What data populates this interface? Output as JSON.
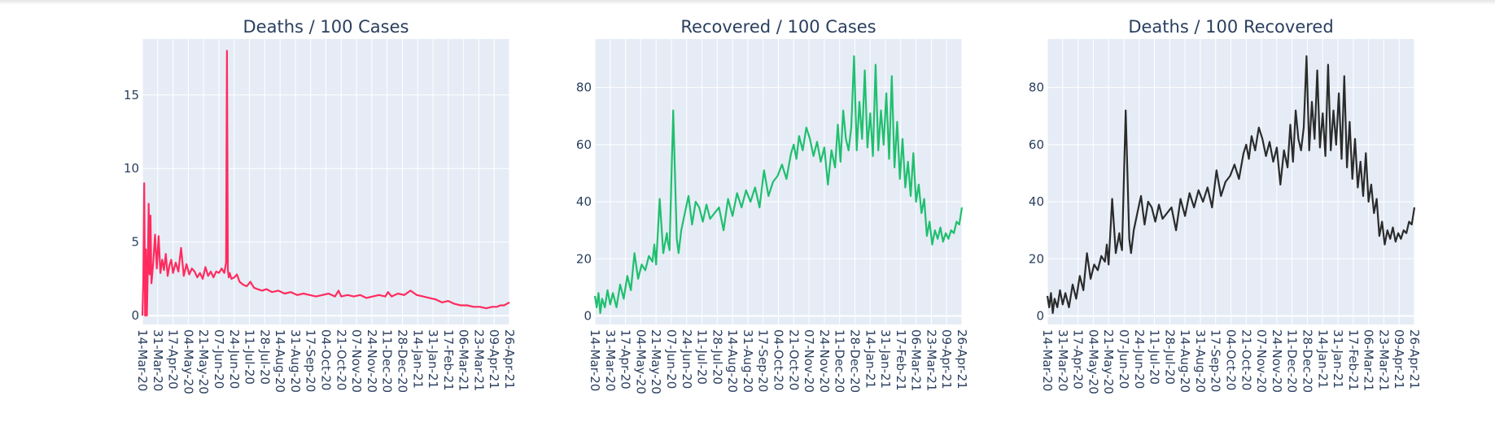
{
  "colors": {
    "plot_background": "#e5ecf6",
    "grid": "#ffffff",
    "text": "#2a3f5f",
    "deaths_line": "#ff2b5e",
    "recovered_line": "#1fbf6e",
    "deaths_per_recovered_line": "#2b2b2b"
  },
  "chart_data": [
    {
      "type": "line",
      "title": "Deaths / 100 Cases",
      "xlabel": "",
      "ylabel": "",
      "x_range": [
        "2020-03-14",
        "2021-04-26"
      ],
      "ylim": [
        -0.6,
        18.8
      ],
      "yticks": [
        0,
        5,
        10,
        15
      ],
      "xtick_labels": [
        "14-Mar-20",
        "31-Mar-20",
        "17-Apr-20",
        "04-May-20",
        "21-May-20",
        "07-Jun-20",
        "24-Jun-20",
        "11-Jul-20",
        "28-Jul-20",
        "14-Aug-20",
        "31-Aug-20",
        "17-Sep-20",
        "04-Oct-20",
        "21-Oct-20",
        "07-Nov-20",
        "24-Nov-20",
        "11-Dec-20",
        "28-Dec-20",
        "14-Jan-21",
        "31-Jan-21",
        "17-Feb-21",
        "06-Mar-21",
        "23-Mar-21",
        "09-Apr-21",
        "26-Apr-21"
      ],
      "grid": true,
      "legend": "none",
      "series": [
        {
          "color": "#ff2b5e",
          "x": [
            "2020-03-14",
            "2020-03-15",
            "2020-03-16",
            "2020-03-17",
            "2020-03-18",
            "2020-03-19",
            "2020-03-20",
            "2020-03-21",
            "2020-03-22",
            "2020-03-23",
            "2020-03-24",
            "2020-03-26",
            "2020-03-28",
            "2020-03-30",
            "2020-04-01",
            "2020-04-03",
            "2020-04-05",
            "2020-04-07",
            "2020-04-09",
            "2020-04-11",
            "2020-04-13",
            "2020-04-15",
            "2020-04-17",
            "2020-04-20",
            "2020-04-23",
            "2020-04-26",
            "2020-04-29",
            "2020-05-02",
            "2020-05-05",
            "2020-05-08",
            "2020-05-11",
            "2020-05-14",
            "2020-05-17",
            "2020-05-20",
            "2020-05-23",
            "2020-05-26",
            "2020-05-29",
            "2020-06-01",
            "2020-06-04",
            "2020-06-07",
            "2020-06-10",
            "2020-06-13",
            "2020-06-15",
            "2020-06-16",
            "2020-06-17",
            "2020-06-18",
            "2020-06-19",
            "2020-06-21",
            "2020-06-24",
            "2020-06-27",
            "2020-06-30",
            "2020-07-04",
            "2020-07-08",
            "2020-07-12",
            "2020-07-16",
            "2020-07-20",
            "2020-07-25",
            "2020-07-30",
            "2020-08-05",
            "2020-08-12",
            "2020-08-19",
            "2020-08-26",
            "2020-09-02",
            "2020-09-09",
            "2020-09-16",
            "2020-09-23",
            "2020-09-30",
            "2020-10-07",
            "2020-10-14",
            "2020-10-18",
            "2020-10-21",
            "2020-10-28",
            "2020-11-04",
            "2020-11-11",
            "2020-11-18",
            "2020-11-25",
            "2020-12-02",
            "2020-12-09",
            "2020-12-12",
            "2020-12-16",
            "2020-12-23",
            "2020-12-30",
            "2021-01-06",
            "2021-01-13",
            "2021-01-20",
            "2021-01-27",
            "2021-02-03",
            "2021-02-10",
            "2021-02-17",
            "2021-02-24",
            "2021-03-03",
            "2021-03-10",
            "2021-03-17",
            "2021-03-24",
            "2021-03-31",
            "2021-04-07",
            "2021-04-12",
            "2021-04-16",
            "2021-04-20",
            "2021-04-23",
            "2021-04-26"
          ],
          "y": [
            0,
            2.4,
            9.0,
            0,
            4.5,
            0,
            3.2,
            7.6,
            2.8,
            6.8,
            2.2,
            3.6,
            5.5,
            3.2,
            5.4,
            2.9,
            3.8,
            3.1,
            4.2,
            2.7,
            3.4,
            3.8,
            2.9,
            3.6,
            3.0,
            4.6,
            2.7,
            3.5,
            2.8,
            3.2,
            3.0,
            2.6,
            2.9,
            2.5,
            3.3,
            2.7,
            3.0,
            2.6,
            3.0,
            2.9,
            3.2,
            2.9,
            3.6,
            18.0,
            3.1,
            2.6,
            2.9,
            2.5,
            2.6,
            2.8,
            2.3,
            2.1,
            2.0,
            2.3,
            1.9,
            1.8,
            1.7,
            1.8,
            1.6,
            1.7,
            1.5,
            1.6,
            1.4,
            1.5,
            1.4,
            1.3,
            1.4,
            1.5,
            1.3,
            1.7,
            1.3,
            1.4,
            1.3,
            1.4,
            1.2,
            1.3,
            1.4,
            1.3,
            1.6,
            1.3,
            1.5,
            1.4,
            1.7,
            1.4,
            1.3,
            1.2,
            1.1,
            0.9,
            1.0,
            0.8,
            0.7,
            0.7,
            0.6,
            0.6,
            0.5,
            0.6,
            0.6,
            0.7,
            0.7,
            0.8,
            0.9
          ]
        }
      ]
    },
    {
      "type": "line",
      "title": "Recovered / 100 Cases",
      "xlabel": "",
      "ylabel": "",
      "x_range": [
        "2020-03-14",
        "2021-04-26"
      ],
      "ylim": [
        -3,
        97
      ],
      "yticks": [
        0,
        20,
        40,
        60,
        80
      ],
      "xtick_labels": [
        "14-Mar-20",
        "31-Mar-20",
        "17-Apr-20",
        "04-May-20",
        "21-May-20",
        "07-Jun-20",
        "24-Jun-20",
        "11-Jul-20",
        "28-Jul-20",
        "14-Aug-20",
        "31-Aug-20",
        "17-Sep-20",
        "04-Oct-20",
        "21-Oct-20",
        "07-Nov-20",
        "24-Nov-20",
        "11-Dec-20",
        "28-Dec-20",
        "14-Jan-21",
        "31-Jan-21",
        "17-Feb-21",
        "06-Mar-21",
        "23-Mar-21",
        "09-Apr-21",
        "26-Apr-21"
      ],
      "grid": true,
      "legend": "none",
      "series": [
        {
          "color": "#1fbf6e",
          "x": [
            "2020-03-14",
            "2020-03-16",
            "2020-03-18",
            "2020-03-20",
            "2020-03-22",
            "2020-03-25",
            "2020-03-28",
            "2020-03-31",
            "2020-04-03",
            "2020-04-07",
            "2020-04-11",
            "2020-04-15",
            "2020-04-19",
            "2020-04-23",
            "2020-04-27",
            "2020-05-01",
            "2020-05-05",
            "2020-05-09",
            "2020-05-13",
            "2020-05-17",
            "2020-05-19",
            "2020-05-21",
            "2020-05-25",
            "2020-05-29",
            "2020-06-02",
            "2020-06-03",
            "2020-06-05",
            "2020-06-09",
            "2020-06-13",
            "2020-06-15",
            "2020-06-18",
            "2020-06-22",
            "2020-06-26",
            "2020-06-30",
            "2020-07-04",
            "2020-07-08",
            "2020-07-12",
            "2020-07-16",
            "2020-07-20",
            "2020-07-25",
            "2020-07-30",
            "2020-08-04",
            "2020-08-09",
            "2020-08-14",
            "2020-08-19",
            "2020-08-24",
            "2020-08-29",
            "2020-09-03",
            "2020-09-08",
            "2020-09-13",
            "2020-09-18",
            "2020-09-23",
            "2020-09-28",
            "2020-10-03",
            "2020-10-08",
            "2020-10-13",
            "2020-10-18",
            "2020-10-21",
            "2020-10-24",
            "2020-10-27",
            "2020-10-31",
            "2020-11-04",
            "2020-11-08",
            "2020-11-12",
            "2020-11-16",
            "2020-11-20",
            "2020-11-24",
            "2020-11-28",
            "2020-12-02",
            "2020-12-06",
            "2020-12-09",
            "2020-12-12",
            "2020-12-15",
            "2020-12-18",
            "2020-12-21",
            "2020-12-24",
            "2020-12-27",
            "2020-12-30",
            "2021-01-02",
            "2021-01-05",
            "2021-01-08",
            "2021-01-11",
            "2021-01-14",
            "2021-01-17",
            "2021-01-20",
            "2021-01-23",
            "2021-01-26",
            "2021-01-29",
            "2021-02-01",
            "2021-02-04",
            "2021-02-07",
            "2021-02-10",
            "2021-02-13",
            "2021-02-16",
            "2021-02-19",
            "2021-02-22",
            "2021-02-25",
            "2021-02-28",
            "2021-03-03",
            "2021-03-06",
            "2021-03-09",
            "2021-03-12",
            "2021-03-15",
            "2021-03-18",
            "2021-03-21",
            "2021-03-24",
            "2021-03-27",
            "2021-03-30",
            "2021-04-02",
            "2021-04-05",
            "2021-04-08",
            "2021-04-11",
            "2021-04-14",
            "2021-04-17",
            "2021-04-20",
            "2021-04-23",
            "2021-04-26"
          ],
          "y": [
            7,
            3,
            8,
            1,
            6,
            3,
            9,
            4,
            8,
            3,
            11,
            6,
            14,
            9,
            22,
            13,
            18,
            16,
            21,
            19,
            25,
            18,
            41,
            22,
            29,
            26,
            23,
            72,
            27,
            22,
            30,
            36,
            42,
            32,
            40,
            38,
            33,
            39,
            34,
            36,
            38,
            30,
            41,
            35,
            43,
            38,
            44,
            40,
            45,
            38,
            51,
            42,
            47,
            49,
            53,
            48,
            57,
            60,
            55,
            63,
            58,
            66,
            62,
            56,
            61,
            54,
            59,
            46,
            58,
            52,
            67,
            54,
            72,
            62,
            58,
            66,
            91,
            58,
            75,
            62,
            86,
            59,
            71,
            56,
            88,
            58,
            72,
            60,
            78,
            55,
            84,
            52,
            68,
            48,
            62,
            45,
            54,
            42,
            57,
            40,
            46,
            36,
            41,
            28,
            33,
            25,
            30,
            27,
            31,
            26,
            29,
            27,
            30,
            29,
            33,
            32,
            38
          ]
        }
      ]
    },
    {
      "type": "line",
      "title": "Deaths / 100 Recovered",
      "xlabel": "",
      "ylabel": "",
      "x_range": [
        "2020-03-14",
        "2021-04-26"
      ],
      "ylim": [
        -3,
        97
      ],
      "yticks": [
        0,
        20,
        40,
        60,
        80
      ],
      "xtick_labels": [
        "14-Mar-20",
        "31-Mar-20",
        "17-Apr-20",
        "04-May-20",
        "21-May-20",
        "07-Jun-20",
        "24-Jun-20",
        "11-Jul-20",
        "28-Jul-20",
        "14-Aug-20",
        "31-Aug-20",
        "17-Sep-20",
        "04-Oct-20",
        "21-Oct-20",
        "07-Nov-20",
        "24-Nov-20",
        "11-Dec-20",
        "28-Dec-20",
        "14-Jan-21",
        "31-Jan-21",
        "17-Feb-21",
        "06-Mar-21",
        "23-Mar-21",
        "09-Apr-21",
        "26-Apr-21"
      ],
      "grid": true,
      "legend": "none",
      "series": [
        {
          "color": "#2b2b2b",
          "x": [
            "2020-03-14",
            "2020-03-16",
            "2020-03-18",
            "2020-03-20",
            "2020-03-22",
            "2020-03-25",
            "2020-03-28",
            "2020-03-31",
            "2020-04-03",
            "2020-04-07",
            "2020-04-11",
            "2020-04-15",
            "2020-04-19",
            "2020-04-23",
            "2020-04-27",
            "2020-05-01",
            "2020-05-05",
            "2020-05-09",
            "2020-05-13",
            "2020-05-17",
            "2020-05-19",
            "2020-05-21",
            "2020-05-25",
            "2020-05-29",
            "2020-06-02",
            "2020-06-03",
            "2020-06-05",
            "2020-06-09",
            "2020-06-13",
            "2020-06-15",
            "2020-06-18",
            "2020-06-22",
            "2020-06-26",
            "2020-06-30",
            "2020-07-04",
            "2020-07-08",
            "2020-07-12",
            "2020-07-16",
            "2020-07-20",
            "2020-07-25",
            "2020-07-30",
            "2020-08-04",
            "2020-08-09",
            "2020-08-14",
            "2020-08-19",
            "2020-08-24",
            "2020-08-29",
            "2020-09-03",
            "2020-09-08",
            "2020-09-13",
            "2020-09-18",
            "2020-09-23",
            "2020-09-28",
            "2020-10-03",
            "2020-10-08",
            "2020-10-13",
            "2020-10-18",
            "2020-10-21",
            "2020-10-24",
            "2020-10-27",
            "2020-10-31",
            "2020-11-04",
            "2020-11-08",
            "2020-11-12",
            "2020-11-16",
            "2020-11-20",
            "2020-11-24",
            "2020-11-28",
            "2020-12-02",
            "2020-12-06",
            "2020-12-09",
            "2020-12-12",
            "2020-12-15",
            "2020-12-18",
            "2020-12-21",
            "2020-12-24",
            "2020-12-27",
            "2020-12-30",
            "2021-01-02",
            "2021-01-05",
            "2021-01-08",
            "2021-01-11",
            "2021-01-14",
            "2021-01-17",
            "2021-01-20",
            "2021-01-23",
            "2021-01-26",
            "2021-01-29",
            "2021-02-01",
            "2021-02-04",
            "2021-02-07",
            "2021-02-10",
            "2021-02-13",
            "2021-02-16",
            "2021-02-19",
            "2021-02-22",
            "2021-02-25",
            "2021-02-28",
            "2021-03-03",
            "2021-03-06",
            "2021-03-09",
            "2021-03-12",
            "2021-03-15",
            "2021-03-18",
            "2021-03-21",
            "2021-03-24",
            "2021-03-27",
            "2021-03-30",
            "2021-04-02",
            "2021-04-05",
            "2021-04-08",
            "2021-04-11",
            "2021-04-14",
            "2021-04-17",
            "2021-04-20",
            "2021-04-23",
            "2021-04-26"
          ],
          "y": [
            7,
            3,
            8,
            1,
            6,
            3,
            9,
            4,
            8,
            3,
            11,
            6,
            14,
            9,
            22,
            13,
            18,
            16,
            21,
            19,
            25,
            18,
            41,
            22,
            29,
            26,
            23,
            72,
            27,
            22,
            30,
            36,
            42,
            32,
            40,
            38,
            33,
            39,
            34,
            36,
            38,
            30,
            41,
            35,
            43,
            38,
            44,
            40,
            45,
            38,
            51,
            42,
            47,
            49,
            53,
            48,
            57,
            60,
            55,
            63,
            58,
            66,
            62,
            56,
            61,
            54,
            59,
            46,
            58,
            52,
            67,
            54,
            72,
            62,
            58,
            66,
            91,
            58,
            75,
            62,
            86,
            59,
            71,
            56,
            88,
            58,
            72,
            60,
            78,
            55,
            84,
            52,
            68,
            48,
            62,
            45,
            54,
            42,
            57,
            40,
            46,
            36,
            41,
            28,
            33,
            25,
            30,
            27,
            31,
            26,
            29,
            27,
            30,
            29,
            33,
            32,
            38
          ]
        }
      ]
    }
  ]
}
